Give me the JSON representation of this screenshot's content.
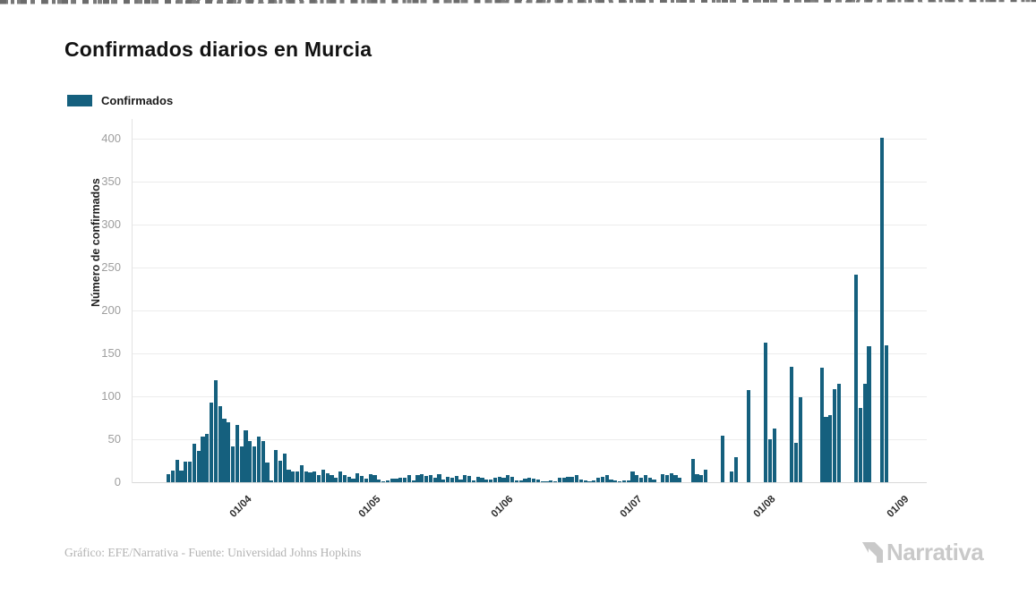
{
  "page": {
    "title": "Confirmados diarios en Murcia"
  },
  "legend": {
    "label": "Confirmados",
    "color": "#15607E"
  },
  "footer": {
    "credit": "Gráfico: EFE/Narrativa - Fuente: Universidad Johns Hopkins",
    "brand": "Narrativa"
  },
  "chart_data": {
    "type": "bar",
    "title": "Confirmados diarios en Murcia",
    "series_name": "Confirmados",
    "xlabel": "",
    "ylabel": "Número de confirmados",
    "ylim": [
      0,
      400
    ],
    "yticks": [
      0,
      50,
      100,
      150,
      200,
      250,
      300,
      350,
      400
    ],
    "grid": true,
    "legend_position": "top-left",
    "bar_color": "#15607E",
    "xticks": [
      {
        "label": "01/04",
        "day": 18
      },
      {
        "label": "01/05",
        "day": 48
      },
      {
        "label": "01/06",
        "day": 79
      },
      {
        "label": "01/07",
        "day": 109
      },
      {
        "label": "01/08",
        "day": 140
      },
      {
        "label": "01/09",
        "day": 171
      }
    ],
    "dates": [
      "14/03",
      "15/03",
      "16/03",
      "17/03",
      "18/03",
      "19/03",
      "20/03",
      "21/03",
      "22/03",
      "23/03",
      "24/03",
      "25/03",
      "26/03",
      "27/03",
      "28/03",
      "29/03",
      "30/03",
      "31/03",
      "01/04",
      "02/04",
      "03/04",
      "04/04",
      "05/04",
      "06/04",
      "07/04",
      "08/04",
      "09/04",
      "10/04",
      "11/04",
      "12/04",
      "13/04",
      "14/04",
      "15/04",
      "16/04",
      "17/04",
      "18/04",
      "19/04",
      "20/04",
      "21/04",
      "22/04",
      "23/04",
      "24/04",
      "25/04",
      "26/04",
      "27/04",
      "28/04",
      "29/04",
      "30/04",
      "01/05",
      "02/05",
      "03/05",
      "04/05",
      "05/05",
      "06/05",
      "07/05",
      "08/05",
      "09/05",
      "10/05",
      "11/05",
      "12/05",
      "13/05",
      "14/05",
      "15/05",
      "16/05",
      "17/05",
      "18/05",
      "19/05",
      "20/05",
      "21/05",
      "22/05",
      "23/05",
      "24/05",
      "25/05",
      "26/05",
      "27/05",
      "28/05",
      "29/05",
      "30/05",
      "31/05",
      "01/06",
      "02/06",
      "03/06",
      "04/06",
      "05/06",
      "06/06",
      "07/06",
      "08/06",
      "09/06",
      "10/06",
      "11/06",
      "12/06",
      "13/06",
      "14/06",
      "15/06",
      "16/06",
      "17/06",
      "18/06",
      "19/06",
      "20/06",
      "21/06",
      "22/06",
      "23/06",
      "24/06",
      "25/06",
      "26/06",
      "27/06",
      "28/06",
      "29/06",
      "30/06",
      "01/07",
      "02/07",
      "03/07",
      "04/07",
      "05/07",
      "06/07",
      "07/07",
      "08/07",
      "09/07",
      "10/07",
      "11/07",
      "12/07",
      "13/07",
      "14/07",
      "15/07",
      "16/07",
      "17/07",
      "18/07",
      "19/07",
      "20/07",
      "21/07",
      "22/07",
      "23/07",
      "24/07",
      "25/07",
      "26/07",
      "27/07",
      "28/07",
      "29/07",
      "30/07",
      "31/07",
      "01/08",
      "02/08",
      "03/08",
      "04/08",
      "05/08",
      "06/08",
      "07/08",
      "08/08",
      "09/08",
      "10/08",
      "11/08",
      "12/08",
      "13/08",
      "14/08",
      "15/08",
      "16/08",
      "17/08",
      "18/08",
      "19/08",
      "20/08",
      "21/08",
      "22/08",
      "23/08",
      "24/08",
      "25/08",
      "26/08",
      "27/08",
      "28/08",
      "29/08",
      "30/08",
      "31/08"
    ],
    "values": [
      9,
      14,
      26,
      14,
      24,
      24,
      45,
      36,
      53,
      56,
      93,
      119,
      89,
      74,
      70,
      42,
      67,
      42,
      60,
      48,
      42,
      53,
      48,
      23,
      2,
      38,
      25,
      33,
      15,
      12,
      13,
      20,
      13,
      11,
      12,
      8,
      15,
      10,
      8,
      5,
      12,
      8,
      6,
      4,
      10,
      7,
      4,
      9,
      8,
      3,
      1,
      2,
      4,
      4,
      5,
      5,
      8,
      2,
      8,
      9,
      7,
      8,
      5,
      9,
      3,
      6,
      5,
      7,
      3,
      8,
      7,
      2,
      6,
      5,
      3,
      3,
      5,
      6,
      5,
      8,
      6,
      2,
      2,
      4,
      5,
      4,
      3,
      1,
      1,
      2,
      1,
      5,
      5,
      6,
      6,
      8,
      3,
      2,
      1,
      2,
      5,
      6,
      8,
      3,
      2,
      1,
      2,
      2,
      13,
      8,
      5,
      8,
      5,
      3,
      0,
      9,
      8,
      10,
      8,
      5,
      0,
      0,
      27,
      9,
      8,
      15,
      0,
      0,
      0,
      54,
      0,
      12,
      29,
      0,
      0,
      107,
      0,
      0,
      0,
      162,
      50,
      62,
      0,
      0,
      0,
      134,
      46,
      99,
      0,
      0,
      0,
      0,
      133,
      76,
      78,
      108,
      115,
      0,
      0,
      0,
      242,
      86,
      115,
      158,
      0,
      0,
      401,
      159,
      0,
      0,
      0
    ]
  }
}
